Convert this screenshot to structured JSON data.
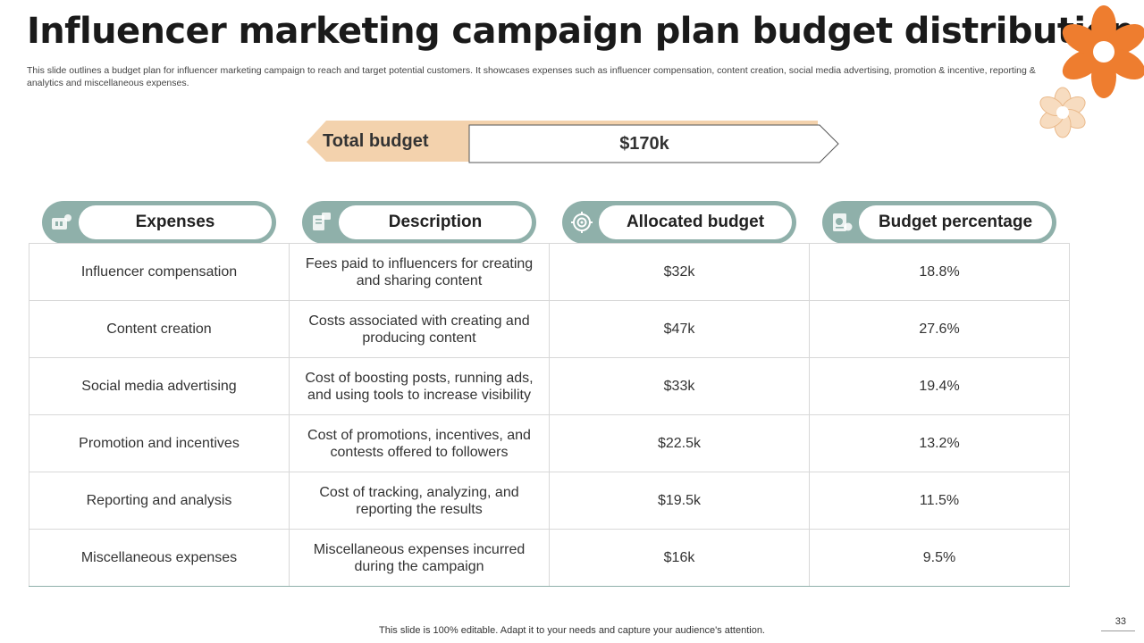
{
  "title": "Influencer marketing campaign plan budget distribution",
  "subtitle": "This slide outlines a budget plan for influencer marketing campaign to reach and target potential customers. It showcases expenses such as influencer compensation, content creation, social media advertising, promotion & incentive, reporting & analytics and miscellaneous expenses.",
  "total_budget": {
    "label": "Total budget",
    "value": "$170k"
  },
  "headers": [
    {
      "label": "Expenses",
      "icon": "money-icon"
    },
    {
      "label": "Description",
      "icon": "document-icon"
    },
    {
      "label": "Allocated budget",
      "icon": "target-icon"
    },
    {
      "label": "Budget percentage",
      "icon": "report-icon"
    }
  ],
  "rows": [
    {
      "expense": "Influencer  compensation",
      "description": "Fees paid to influencers  for creating and sharing content",
      "budget": "$32k",
      "percentage": "18.8%"
    },
    {
      "expense": "Content creation",
      "description": "Costs associated with creating and producing content",
      "budget": "$47k",
      "percentage": "27.6%"
    },
    {
      "expense": "Social media advertising",
      "description": "Cost of boosting posts, running ads, and using tools to increase visibility",
      "budget": "$33k",
      "percentage": "19.4%"
    },
    {
      "expense": "Promotion and incentives",
      "description": "Cost of promotions, incentives, and contests offered to followers",
      "budget": "$22.5k",
      "percentage": "13.2%"
    },
    {
      "expense": "Reporting and analysis",
      "description": "Cost of tracking, analyzing,  and reporting the results",
      "budget": "$19.5k",
      "percentage": "11.5%"
    },
    {
      "expense": "Miscellaneous expenses",
      "description": "Miscellaneous expenses incurred during the campaign",
      "budget": "$16k",
      "percentage": "9.5%"
    }
  ],
  "footer": "This slide is 100% editable. Adapt it to your needs and capture your audience's attention.",
  "page_number": "33",
  "colors": {
    "accent": "#8fb0aa",
    "peach": "#f3d2ad",
    "orange": "#ee7d2f",
    "light_flower": "#f7dcc0"
  }
}
